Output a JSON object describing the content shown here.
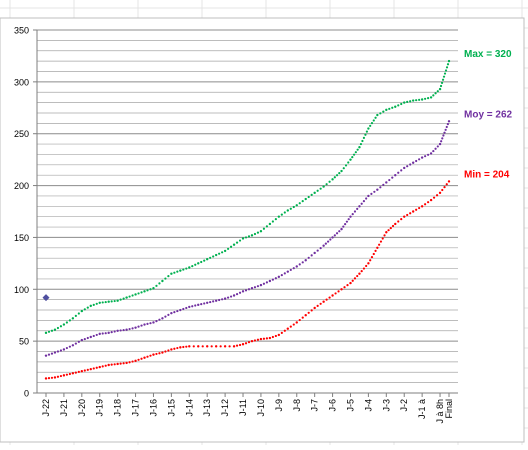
{
  "chart_data": {
    "type": "line",
    "ylim": [
      0,
      350
    ],
    "yticks": [
      0,
      50,
      100,
      150,
      200,
      250,
      300,
      350
    ],
    "grid": true,
    "categories": [
      "J-22",
      "J-21",
      "J-20",
      "J-19",
      "J-18",
      "J-17",
      "J-16",
      "J-15",
      "J-14",
      "J-13",
      "J-12",
      "J-11",
      "J-10",
      "J-9",
      "J-8",
      "J-7",
      "J-6",
      "J-5",
      "J-4",
      "J-3",
      "J-2",
      "J-1 à",
      "J à 8h",
      "Final"
    ],
    "x_positions": [
      0,
      2,
      4,
      6,
      8,
      10,
      12,
      14,
      16,
      18,
      20,
      22,
      24,
      26,
      28,
      30,
      32,
      34,
      36,
      38,
      40,
      42,
      44,
      45
    ],
    "x_max": 45,
    "series": [
      {
        "key": "max",
        "name": "Max = 320",
        "color": "#00b050",
        "points": [
          [
            0,
            58
          ],
          [
            1,
            61
          ],
          [
            2,
            66
          ],
          [
            3,
            72
          ],
          [
            4,
            79
          ],
          [
            5,
            84
          ],
          [
            6,
            87
          ],
          [
            7,
            88
          ],
          [
            8,
            89
          ],
          [
            9,
            92
          ],
          [
            10,
            95
          ],
          [
            11,
            98
          ],
          [
            12,
            101
          ],
          [
            13,
            108
          ],
          [
            14,
            115
          ],
          [
            15,
            118
          ],
          [
            16,
            121
          ],
          [
            17,
            125
          ],
          [
            18,
            129
          ],
          [
            19,
            133
          ],
          [
            20,
            137
          ],
          [
            21,
            143
          ],
          [
            22,
            149
          ],
          [
            23,
            152
          ],
          [
            24,
            156
          ],
          [
            25,
            163
          ],
          [
            26,
            170
          ],
          [
            27,
            176
          ],
          [
            28,
            181
          ],
          [
            29,
            187
          ],
          [
            30,
            193
          ],
          [
            31,
            199
          ],
          [
            32,
            206
          ],
          [
            33,
            214
          ],
          [
            34,
            225
          ],
          [
            35,
            237
          ],
          [
            36,
            255
          ],
          [
            37,
            268
          ],
          [
            38,
            273
          ],
          [
            39,
            276
          ],
          [
            40,
            280
          ],
          [
            41,
            282
          ],
          [
            42,
            283
          ],
          [
            43,
            285
          ],
          [
            44,
            293
          ],
          [
            45,
            320
          ]
        ]
      },
      {
        "key": "moy",
        "name": "Moy = 262",
        "color": "#7030a0",
        "points": [
          [
            0,
            36
          ],
          [
            1,
            39
          ],
          [
            2,
            42
          ],
          [
            3,
            46
          ],
          [
            4,
            51
          ],
          [
            5,
            54
          ],
          [
            6,
            57
          ],
          [
            7,
            58
          ],
          [
            8,
            60
          ],
          [
            9,
            61
          ],
          [
            10,
            63
          ],
          [
            11,
            66
          ],
          [
            12,
            68
          ],
          [
            13,
            72
          ],
          [
            14,
            77
          ],
          [
            15,
            80
          ],
          [
            16,
            83
          ],
          [
            17,
            85
          ],
          [
            18,
            87
          ],
          [
            19,
            89
          ],
          [
            20,
            91
          ],
          [
            21,
            94
          ],
          [
            22,
            98
          ],
          [
            23,
            101
          ],
          [
            24,
            104
          ],
          [
            25,
            108
          ],
          [
            26,
            112
          ],
          [
            27,
            117
          ],
          [
            28,
            122
          ],
          [
            29,
            128
          ],
          [
            30,
            135
          ],
          [
            31,
            142
          ],
          [
            32,
            150
          ],
          [
            33,
            158
          ],
          [
            34,
            170
          ],
          [
            35,
            180
          ],
          [
            36,
            190
          ],
          [
            37,
            196
          ],
          [
            38,
            203
          ],
          [
            39,
            210
          ],
          [
            40,
            217
          ],
          [
            41,
            222
          ],
          [
            42,
            227
          ],
          [
            43,
            231
          ],
          [
            44,
            240
          ],
          [
            45,
            262
          ]
        ]
      },
      {
        "key": "min",
        "name": "Min = 204",
        "color": "#ff0000",
        "points": [
          [
            0,
            14
          ],
          [
            1,
            15
          ],
          [
            2,
            17
          ],
          [
            3,
            19
          ],
          [
            4,
            21
          ],
          [
            5,
            23
          ],
          [
            6,
            25
          ],
          [
            7,
            27
          ],
          [
            8,
            28
          ],
          [
            9,
            29
          ],
          [
            10,
            31
          ],
          [
            11,
            34
          ],
          [
            12,
            37
          ],
          [
            13,
            39
          ],
          [
            14,
            42
          ],
          [
            15,
            44
          ],
          [
            16,
            45
          ],
          [
            17,
            45
          ],
          [
            18,
            45
          ],
          [
            19,
            45
          ],
          [
            20,
            45
          ],
          [
            21,
            45
          ],
          [
            22,
            47
          ],
          [
            23,
            50
          ],
          [
            24,
            52
          ],
          [
            25,
            53
          ],
          [
            26,
            56
          ],
          [
            27,
            62
          ],
          [
            28,
            68
          ],
          [
            29,
            75
          ],
          [
            30,
            82
          ],
          [
            31,
            88
          ],
          [
            32,
            94
          ],
          [
            33,
            100
          ],
          [
            34,
            106
          ],
          [
            35,
            115
          ],
          [
            36,
            125
          ],
          [
            37,
            140
          ],
          [
            38,
            155
          ],
          [
            39,
            163
          ],
          [
            40,
            170
          ],
          [
            41,
            175
          ],
          [
            42,
            180
          ],
          [
            43,
            186
          ],
          [
            44,
            193
          ],
          [
            45,
            204
          ]
        ]
      },
      {
        "key": "current",
        "name": "",
        "color": "#4f4f9f",
        "points": [
          [
            0,
            92
          ]
        ]
      }
    ],
    "labels": [
      {
        "series": "max",
        "text": "Max = 320"
      },
      {
        "series": "moy",
        "text": "Moy = 262"
      },
      {
        "series": "min",
        "text": "Min = 204"
      }
    ]
  }
}
